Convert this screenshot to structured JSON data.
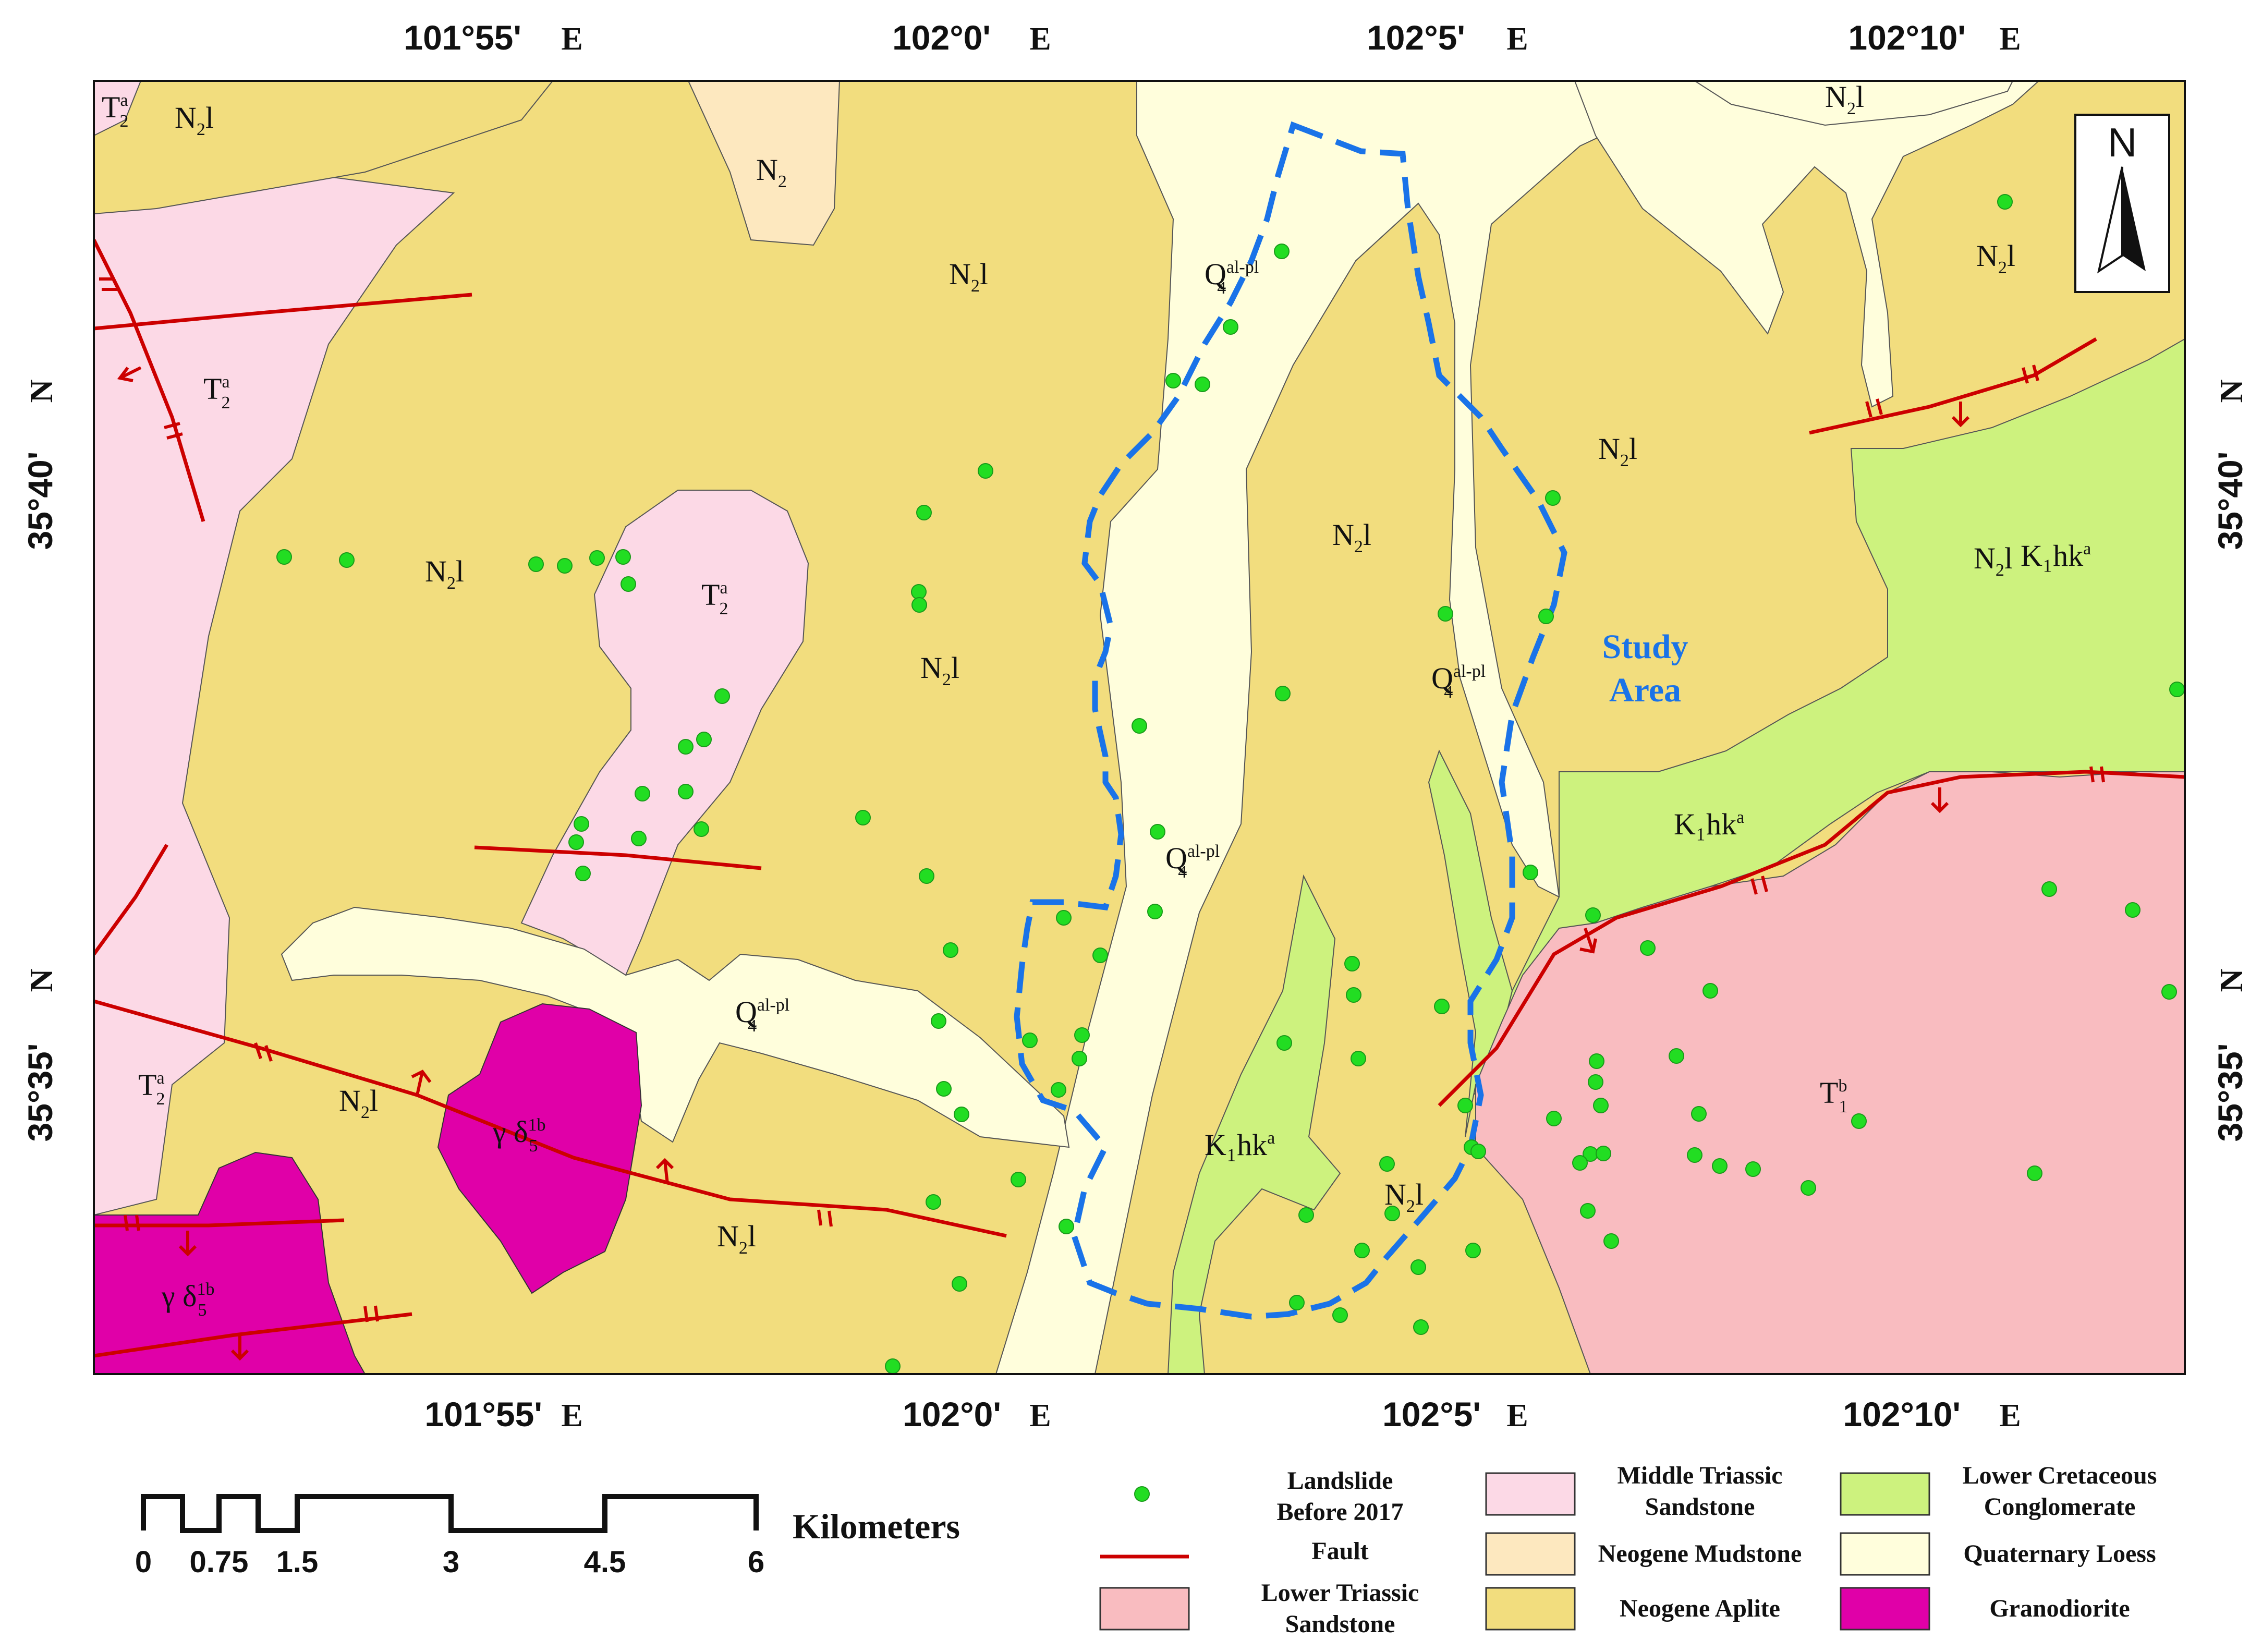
{
  "colors": {
    "aplite": "#f2dd7e",
    "loess": "#fffedc",
    "mid_triassic": "#fcd9e6",
    "mudstone": "#fde8bf",
    "cretaceous": "#cdf27e",
    "lower_triassic": "#f9bcc0",
    "granodiorite": "#e000a8",
    "fault": "#cc0000",
    "landslide": "#22dd22",
    "study_boundary": "#1a73e8"
  },
  "coords": {
    "top_lon": [
      "101°55'",
      "102°0'",
      "102°5'",
      "102°10'"
    ],
    "bottom_lon": [
      "101°55'",
      "102°0'",
      "102°5'",
      "102°10'"
    ],
    "lon_unit": "E",
    "lat": [
      "35°40'",
      "35°35'"
    ],
    "lat_unit": "N"
  },
  "north_arrow": {
    "letter": "N",
    "icon": "north-arrow-icon"
  },
  "study_area": {
    "line1": "Study",
    "line2": "Area"
  },
  "map_labels": [
    {
      "main": "T",
      "sub": "2",
      "sup": "a"
    },
    {
      "main": "N",
      "sub": "2",
      "tail": "l"
    },
    {
      "main": "N",
      "sub": "2",
      "tail": ""
    },
    {
      "main": "N",
      "sub": "2",
      "tail": "l"
    },
    {
      "main": "N",
      "sub": "2",
      "tail": "l"
    },
    {
      "main": "T",
      "sub": "2",
      "sup": "a"
    },
    {
      "main": "N",
      "sub": "2",
      "tail": "l"
    },
    {
      "main": "T",
      "sub": "2",
      "sup": "a"
    },
    {
      "main": "N",
      "sub": "2",
      "tail": "l"
    },
    {
      "main": "Q",
      "sup": "al-pl",
      "sub": "4"
    },
    {
      "main": "N",
      "sub": "2",
      "tail": "l"
    },
    {
      "main": "Q",
      "sup": "al-pl",
      "sub": "4"
    },
    {
      "main": "N",
      "sub": "2",
      "tail": "l"
    },
    {
      "main": "N",
      "sub": "2",
      "tail": "l"
    },
    {
      "main": "Q",
      "sup": "al-pl",
      "sub": "4"
    },
    {
      "main": "Q",
      "sup": "al-pl",
      "sub": "4"
    },
    {
      "main": "K₁hk",
      "sup": "a"
    },
    {
      "main": "K₁hk",
      "sup": "a"
    },
    {
      "main": "T",
      "sub": "2",
      "sup": "a"
    },
    {
      "main": "N",
      "sub": "2",
      "tail": "l"
    },
    {
      "main": "γ δ",
      "sub": "5",
      "sup": "1b"
    },
    {
      "main": "γ δ",
      "sub": "5",
      "sup": "1b"
    },
    {
      "main": "N",
      "sub": "2",
      "tail": "l"
    },
    {
      "main": "K₁hk",
      "sup": "a"
    },
    {
      "main": "N",
      "sub": "2",
      "tail": "l"
    },
    {
      "main": "T",
      "sub": "1",
      "sup": "b"
    },
    {
      "main": "N",
      "sub": "2",
      "tail": "l"
    }
  ],
  "scale_bar": {
    "unit_label": "Kilometers",
    "ticks": [
      "0",
      "0.75",
      "1.5",
      "3",
      "4.5",
      "6"
    ]
  },
  "legend": {
    "landslide": [
      "Landslide",
      "Before 2017"
    ],
    "fault": [
      "Fault"
    ],
    "lower_triassic": [
      "Lower Triassic",
      "Sandstone"
    ],
    "mid_triassic": [
      "Middle Triassic",
      "Sandstone"
    ],
    "mudstone": [
      "Neogene Mudstone"
    ],
    "aplite": [
      "Neogene Aplite"
    ],
    "cretaceous": [
      "Lower Cretaceous",
      "Conglomerate"
    ],
    "loess": [
      "Quaternary Loess"
    ],
    "granodiorite": [
      "Granodiorite"
    ]
  }
}
